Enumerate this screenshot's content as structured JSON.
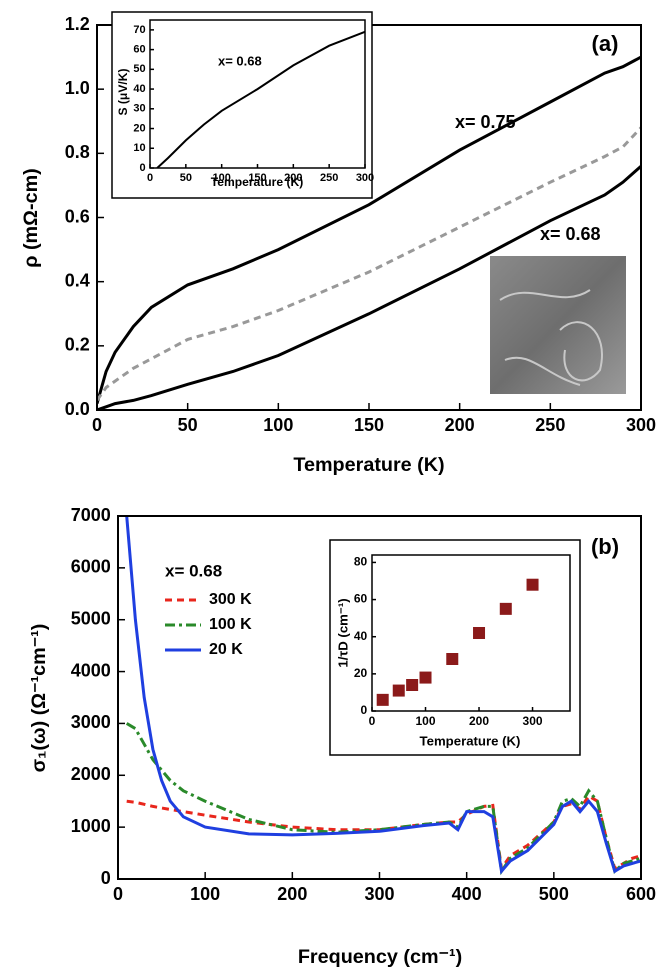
{
  "chart_data": [
    {
      "type": "line",
      "panel_label": "(a)",
      "x_label": "Temperature (K)",
      "y_label": "ρ (mΩ-cm)",
      "xlim": [
        0,
        300
      ],
      "ylim": [
        0,
        1.2
      ],
      "xticks": [
        0,
        50,
        100,
        150,
        200,
        250,
        300
      ],
      "yticks": [
        {
          "value": 0,
          "label": "0.0"
        },
        0.2,
        0.4,
        0.6,
        0.8,
        {
          "value": 1,
          "label": "1.0"
        },
        1.2
      ],
      "x": [
        0,
        5,
        10,
        20,
        30,
        50,
        75,
        100,
        150,
        200,
        250,
        280,
        290,
        300
      ],
      "series": [
        {
          "name": "x= 0.75",
          "color": "#000000",
          "style": "solid",
          "values": [
            0.02,
            0.12,
            0.18,
            0.26,
            0.32,
            0.39,
            0.44,
            0.5,
            0.64,
            0.81,
            0.96,
            1.05,
            1.07,
            1.1
          ]
        },
        {
          "color": "#999999",
          "style": "dashed",
          "values": [
            0.03,
            0.07,
            0.09,
            0.13,
            0.16,
            0.22,
            0.26,
            0.31,
            0.43,
            0.57,
            0.71,
            0.79,
            0.82,
            0.88
          ]
        },
        {
          "name": "x= 0.68",
          "color": "#000000",
          "style": "solid",
          "values": [
            0,
            0.01,
            0.02,
            0.03,
            0.045,
            0.08,
            0.12,
            0.17,
            0.3,
            0.44,
            0.59,
            0.67,
            0.71,
            0.76
          ]
        }
      ]
    },
    {
      "type": "line",
      "annotation": "x= 0.68",
      "x_label": "Temperature (K)",
      "y_label": "S (μV/K)",
      "xlim": [
        0,
        300
      ],
      "ylim": [
        0,
        75
      ],
      "xticks": [
        0,
        50,
        100,
        150,
        200,
        250,
        300
      ],
      "yticks": [
        0,
        10,
        20,
        30,
        40,
        50,
        60,
        70
      ],
      "x": [
        10,
        25,
        50,
        75,
        100,
        150,
        200,
        250,
        300
      ],
      "series": [
        {
          "color": "#000000",
          "style": "solid",
          "values": [
            0,
            5,
            14,
            22,
            29,
            40,
            52,
            62,
            69
          ]
        }
      ]
    },
    {
      "type": "line",
      "panel_label": "(b)",
      "x_label": "Frequency (cm⁻¹)",
      "y_label": "σ₁(ω) (Ω⁻¹cm⁻¹)",
      "legend": true,
      "legend_title": "x= 0.68",
      "xlim": [
        0,
        600
      ],
      "ylim": [
        0,
        7000
      ],
      "xticks": [
        0,
        100,
        200,
        300,
        400,
        500,
        600
      ],
      "yticks": [
        0,
        1000,
        2000,
        3000,
        4000,
        5000,
        6000,
        7000
      ],
      "x": [
        10,
        20,
        30,
        40,
        50,
        60,
        75,
        100,
        150,
        200,
        250,
        300,
        350,
        380,
        390,
        400,
        420,
        430,
        440,
        450,
        470,
        500,
        510,
        520,
        530,
        540,
        550,
        560,
        570,
        580,
        590,
        600
      ],
      "series": [
        {
          "name": "300 K",
          "color": "#e8261c",
          "style": "dashed",
          "values": [
            1500,
            1480,
            1440,
            1400,
            1370,
            1340,
            1300,
            1230,
            1100,
            1000,
            950,
            950,
            1050,
            1100,
            1100,
            1250,
            1400,
            1420,
            200,
            450,
            650,
            1100,
            1400,
            1450,
            1350,
            1600,
            1500,
            800,
            200,
            300,
            400,
            450
          ]
        },
        {
          "name": "100 K",
          "color": "#2a8a2a",
          "style": "dash-dot",
          "values": [
            3000,
            2900,
            2600,
            2300,
            2100,
            1900,
            1700,
            1500,
            1150,
            950,
            900,
            950,
            1050,
            1100,
            1000,
            1300,
            1400,
            1400,
            150,
            400,
            600,
            1100,
            1500,
            1550,
            1400,
            1700,
            1500,
            800,
            150,
            300,
            350,
            400
          ]
        },
        {
          "name": "20 K",
          "color": "#1f3fe0",
          "style": "solid",
          "values": [
            7000,
            5000,
            3500,
            2500,
            1900,
            1500,
            1200,
            1000,
            870,
            850,
            880,
            920,
            1030,
            1080,
            950,
            1300,
            1300,
            1200,
            150,
            350,
            550,
            1050,
            1400,
            1500,
            1300,
            1500,
            1300,
            700,
            150,
            250,
            300,
            350
          ]
        }
      ]
    },
    {
      "type": "scatter",
      "x_label": "Temperature (K)",
      "y_label": "1/τD (cm⁻¹)",
      "color": "#8b1a1a",
      "xlim": [
        0,
        370
      ],
      "ylim": [
        0,
        84
      ],
      "xticks": [
        0,
        100,
        200,
        300
      ],
      "yticks": [
        0,
        20,
        40,
        60,
        80
      ],
      "x": [
        20,
        50,
        75,
        100,
        150,
        200,
        250,
        300
      ],
      "values": [
        6,
        11,
        14,
        18,
        28,
        42,
        55,
        68
      ]
    }
  ]
}
